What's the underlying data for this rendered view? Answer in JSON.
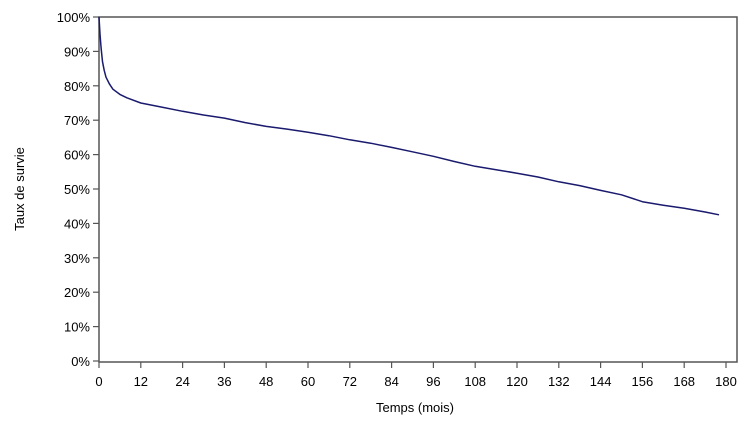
{
  "chart_data": {
    "type": "line",
    "title": "",
    "xlabel": "Temps (mois)",
    "ylabel": "Taux de survie",
    "xlim": [
      0,
      180
    ],
    "ylim": [
      0,
      100
    ],
    "xticks": [
      0,
      12,
      24,
      36,
      48,
      60,
      72,
      84,
      96,
      108,
      120,
      132,
      144,
      156,
      168,
      180
    ],
    "yticks": [
      0,
      10,
      20,
      30,
      40,
      50,
      60,
      70,
      80,
      90,
      100
    ],
    "ytick_labels": [
      "0%",
      "10%",
      "20%",
      "30%",
      "40%",
      "50%",
      "60%",
      "70%",
      "80%",
      "90%",
      "100%"
    ],
    "grid": false,
    "series": [
      {
        "name": "Survie",
        "color": "#1a1a6e",
        "x": [
          0,
          0.3,
          0.6,
          1,
          1.5,
          2,
          3,
          4,
          6,
          8,
          12,
          18,
          24,
          30,
          36,
          42,
          48,
          54,
          60,
          66,
          72,
          78,
          84,
          90,
          96,
          102,
          108,
          114,
          120,
          126,
          132,
          138,
          144,
          150,
          156,
          162,
          168,
          174,
          178
        ],
        "y": [
          100,
          95,
          91,
          87,
          84.5,
          82.5,
          80.5,
          79,
          77.5,
          76.5,
          75,
          73.8,
          72.6,
          71.5,
          70.6,
          69.3,
          68.2,
          67.4,
          66.5,
          65.5,
          64.3,
          63.3,
          62.1,
          60.8,
          59.5,
          58,
          56.6,
          55.6,
          54.6,
          53.5,
          52.1,
          51,
          49.6,
          48.3,
          46.3,
          45.3,
          44.4,
          43.3,
          42.5
        ]
      }
    ]
  }
}
